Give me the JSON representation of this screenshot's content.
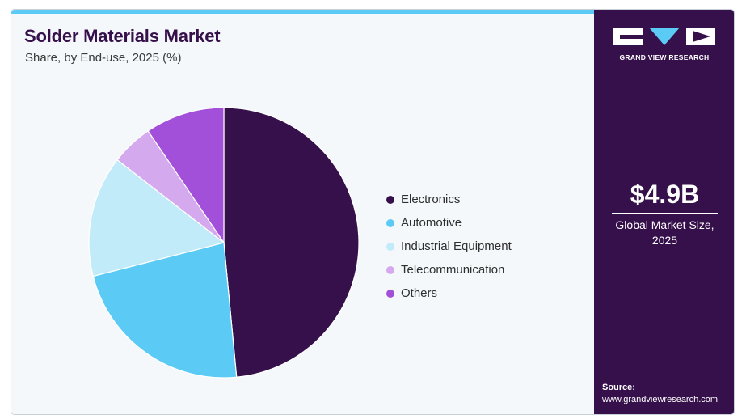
{
  "header": {
    "title": "Solder Materials Market",
    "subtitle": "Share, by End-use, 2025 (%)"
  },
  "chart_data": {
    "type": "pie",
    "title": "Solder Materials Market",
    "subtitle": "Share, by End-use, 2025 (%)",
    "slices": [
      {
        "label": "Electronics",
        "value": 48.5,
        "color": "#35104a"
      },
      {
        "label": "Automotive",
        "value": 22.5,
        "color": "#5bcbf5"
      },
      {
        "label": "Industrial Equipment",
        "value": 14.5,
        "color": "#c2ebfa"
      },
      {
        "label": "Telecommunication",
        "value": 5.0,
        "color": "#d4a9ed"
      },
      {
        "label": "Others",
        "value": 9.5,
        "color": "#a24fd9"
      }
    ],
    "legend_position": "right"
  },
  "sidebar": {
    "brand": "GRAND VIEW RESEARCH",
    "kpi_value": "$4.9B",
    "kpi_label": "Global Market Size, 2025",
    "source_label": "Source:",
    "source_url": "www.grandviewresearch.com"
  }
}
